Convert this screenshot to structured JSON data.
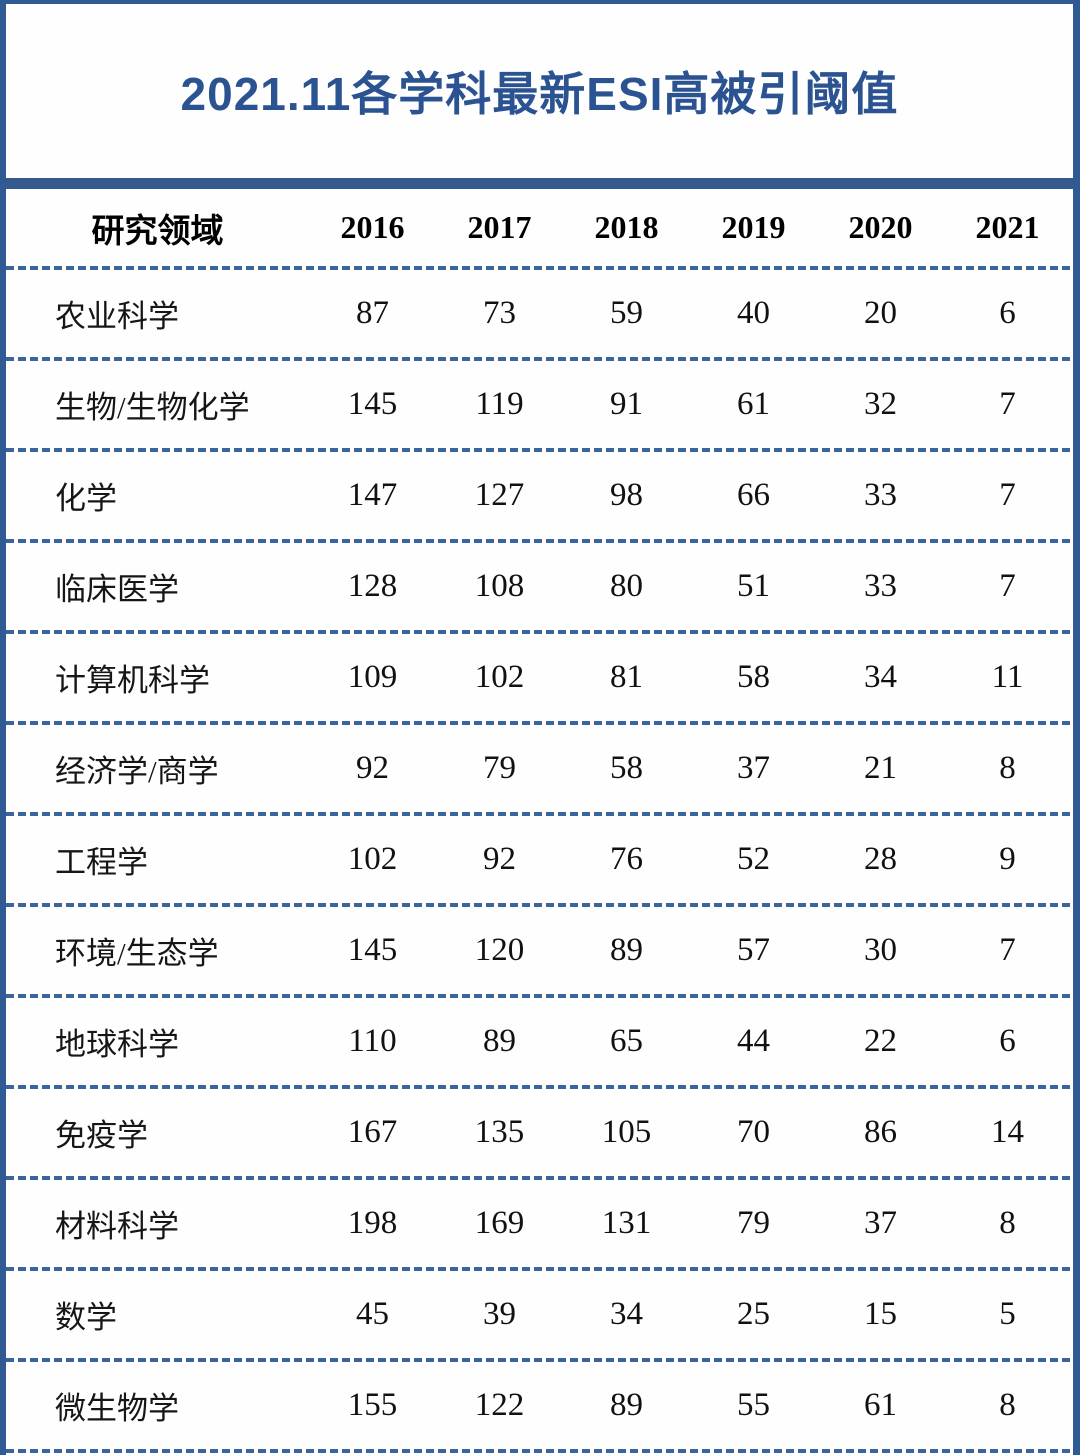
{
  "title": "2021.11各学科最新ESI高被引阈值",
  "chart_data": {
    "type": "table",
    "title": "2021.11各学科最新ESI高被引阈值",
    "columns": [
      "研究领域",
      "2016",
      "2017",
      "2018",
      "2019",
      "2020",
      "2021"
    ],
    "rows": [
      [
        "农业科学",
        87,
        73,
        59,
        40,
        20,
        6
      ],
      [
        "生物/生物化学",
        145,
        119,
        91,
        61,
        32,
        7
      ],
      [
        "化学",
        147,
        127,
        98,
        66,
        33,
        7
      ],
      [
        "临床医学",
        128,
        108,
        80,
        51,
        33,
        7
      ],
      [
        "计算机科学",
        109,
        102,
        81,
        58,
        34,
        11
      ],
      [
        "经济学/商学",
        92,
        79,
        58,
        37,
        21,
        8
      ],
      [
        "工程学",
        102,
        92,
        76,
        52,
        28,
        9
      ],
      [
        "环境/生态学",
        145,
        120,
        89,
        57,
        30,
        7
      ],
      [
        "地球科学",
        110,
        89,
        65,
        44,
        22,
        6
      ],
      [
        "免疫学",
        167,
        135,
        105,
        70,
        86,
        14
      ],
      [
        "材料科学",
        198,
        169,
        131,
        79,
        37,
        8
      ],
      [
        "数学",
        45,
        39,
        34,
        25,
        15,
        5
      ],
      [
        "微生物学",
        155,
        122,
        89,
        55,
        61,
        8
      ]
    ],
    "layout": {
      "grid": "horizontal dashed separators only",
      "header_style": "bold serif",
      "notes": "bottom row separator cut off at image edge"
    }
  },
  "colors": {
    "frame_blue": "#2f5a93",
    "divider_blue": "#35598c",
    "dash_blue": "#3a64a0",
    "title_blue": "#2b5391",
    "text_black": "#111111",
    "background": "#fefefe"
  }
}
